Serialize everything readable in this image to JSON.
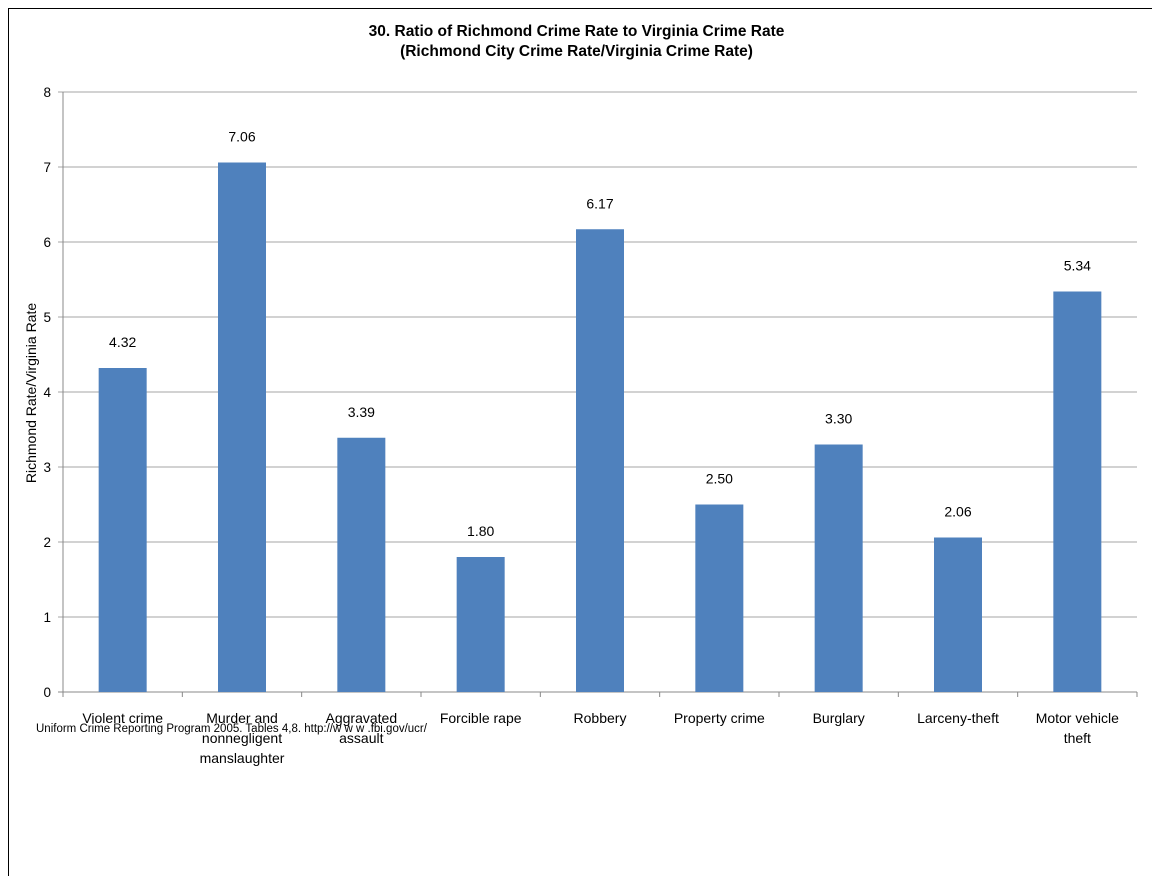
{
  "chart_data": {
    "type": "bar",
    "title": "30. Ratio of Richmond Crime Rate to Virginia Crime Rate",
    "subtitle": "(Richmond City Crime Rate/Virginia Crime Rate)",
    "xlabel": "",
    "ylabel": "Richmond Rate/Virginia Rate",
    "ylim": [
      0,
      8
    ],
    "yticks": [
      "0",
      "1",
      "2",
      "3",
      "4",
      "5",
      "6",
      "7",
      "8"
    ],
    "grid": true,
    "categories": [
      [
        "Violent crime"
      ],
      [
        "Murder and",
        "nonnegligent",
        "manslaughter"
      ],
      [
        "Aggravated",
        "assault"
      ],
      [
        "Forcible rape"
      ],
      [
        "Robbery"
      ],
      [
        "Property crime"
      ],
      [
        "Burglary"
      ],
      [
        "Larceny-theft"
      ],
      [
        "Motor vehicle",
        "theft"
      ]
    ],
    "values": [
      4.32,
      7.06,
      3.39,
      1.8,
      6.17,
      2.5,
      3.3,
      2.06,
      5.34
    ],
    "value_labels": [
      "4.32",
      "7.06",
      "3.39",
      "1.80",
      "6.17",
      "2.50",
      "3.30",
      "2.06",
      "5.34"
    ],
    "bar_color": "#4f81bd",
    "grid_color": "#a6a6a6"
  },
  "source_note": "Uniform Crime Reporting Program 2005. Tables 4,8. http://w w w .fbi.gov/ucr/"
}
